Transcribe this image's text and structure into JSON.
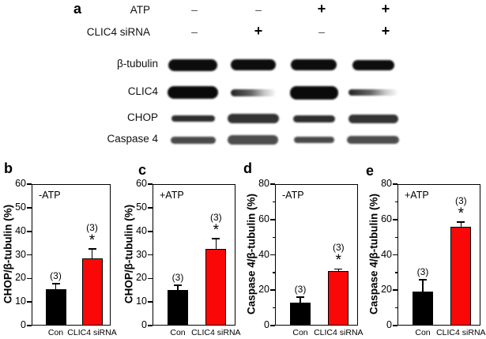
{
  "panel_a": {
    "label": "a",
    "header_rows": [
      {
        "label": "ATP",
        "signs": [
          "–",
          "–",
          "+",
          "+"
        ]
      },
      {
        "label": "CLIC4 siRNA",
        "signs": [
          "–",
          "+",
          "–",
          "+"
        ]
      }
    ],
    "rows": [
      {
        "label": "β-tubulin",
        "bands": [
          {
            "w": 62,
            "h": 15,
            "c": "#0d0d0d",
            "fade": 0
          },
          {
            "w": 57,
            "h": 14,
            "c": "#0d0d0d",
            "fade": 0
          },
          {
            "w": 58,
            "h": 14,
            "c": "#0d0d0d",
            "fade": 0
          },
          {
            "w": 53,
            "h": 13,
            "c": "#0d0d0d",
            "fade": 0
          }
        ]
      },
      {
        "label": "CLIC4",
        "bands": [
          {
            "w": 64,
            "h": 16,
            "c": "#0a0a0a",
            "fade": 0
          },
          {
            "w": 57,
            "h": 9,
            "c": "#1a1a1a",
            "fade": 1
          },
          {
            "w": 61,
            "h": 17,
            "c": "#0a0a0a",
            "fade": 0
          },
          {
            "w": 62,
            "h": 8,
            "c": "#222222",
            "fade": 1
          }
        ]
      },
      {
        "label": "CHOP",
        "bands": [
          {
            "w": 55,
            "h": 8,
            "c": "#2e2e2e",
            "fade": 0
          },
          {
            "w": 65,
            "h": 12,
            "c": "#333333",
            "fade": 0
          },
          {
            "w": 53,
            "h": 9,
            "c": "#2e2e2e",
            "fade": 0
          },
          {
            "w": 63,
            "h": 11,
            "c": "#333333",
            "fade": 0
          }
        ]
      },
      {
        "label": "Caspase 4",
        "bands": [
          {
            "w": 57,
            "h": 9,
            "c": "#4a4a4a",
            "fade": 0
          },
          {
            "w": 64,
            "h": 12,
            "c": "#4d4d4d",
            "fade": 0
          },
          {
            "w": 51,
            "h": 8,
            "c": "#4a4a4a",
            "fade": 0
          },
          {
            "w": 66,
            "h": 10,
            "c": "#4d4d4d",
            "fade": 0
          }
        ]
      }
    ]
  },
  "chart_data": [
    {
      "type": "bar",
      "panel_label": "b",
      "annotation": "-ATP",
      "ylabel": "CHOP/β-tubulin (%)",
      "ylim": [
        0,
        60
      ],
      "ytick_step": 10,
      "minor_tick_step": null,
      "categories": [
        "Con",
        "CLIC4 siRNA"
      ],
      "values": [
        15.5,
        28.5
      ],
      "errors": [
        2.3,
        4.0
      ],
      "bar_colors": [
        "#000000",
        "#fa0707"
      ],
      "n_labels": [
        "(3)",
        "(3)"
      ],
      "significance": [
        "",
        "*"
      ],
      "grid": false,
      "legend": "none"
    },
    {
      "type": "bar",
      "panel_label": "c",
      "annotation": "+ATP",
      "ylabel": "CHOP/β-tubulin (%)",
      "ylim": [
        0,
        60
      ],
      "ytick_step": 10,
      "minor_tick_step": null,
      "categories": [
        "Con",
        "CLIC4 siRNA"
      ],
      "values": [
        15.0,
        32.5
      ],
      "errors": [
        2.0,
        4.5
      ],
      "bar_colors": [
        "#000000",
        "#fa0707"
      ],
      "n_labels": [
        "(3)",
        "(3)"
      ],
      "significance": [
        "",
        "*"
      ],
      "grid": false,
      "legend": "none"
    },
    {
      "type": "bar",
      "panel_label": "d",
      "annotation": "-ATP",
      "ylabel": "Caspase 4/β-tubulin (%)",
      "ylim": [
        0,
        80
      ],
      "ytick_step": 20,
      "minor_tick_step": 10,
      "categories": [
        "Con",
        "CLIC4 siRNA"
      ],
      "values": [
        13.0,
        31.0
      ],
      "errors": [
        3.0,
        1.0
      ],
      "bar_colors": [
        "#000000",
        "#fa0707"
      ],
      "n_labels": [
        "(3)",
        "(3)"
      ],
      "significance": [
        "",
        "*"
      ],
      "grid": false,
      "legend": "none"
    },
    {
      "type": "bar",
      "panel_label": "e",
      "annotation": "+ATP",
      "ylabel": "Caspase 4/β-tubulin (%)",
      "ylim": [
        0,
        80
      ],
      "ytick_step": 20,
      "minor_tick_step": 10,
      "categories": [
        "Con",
        "CLIC4 siRNA"
      ],
      "values": [
        19.0,
        56.0
      ],
      "errors": [
        7.0,
        2.5
      ],
      "bar_colors": [
        "#000000",
        "#fa0707"
      ],
      "n_labels": [
        "(3)",
        "(3)"
      ],
      "significance": [
        "",
        "*"
      ],
      "grid": false,
      "legend": "none"
    }
  ]
}
